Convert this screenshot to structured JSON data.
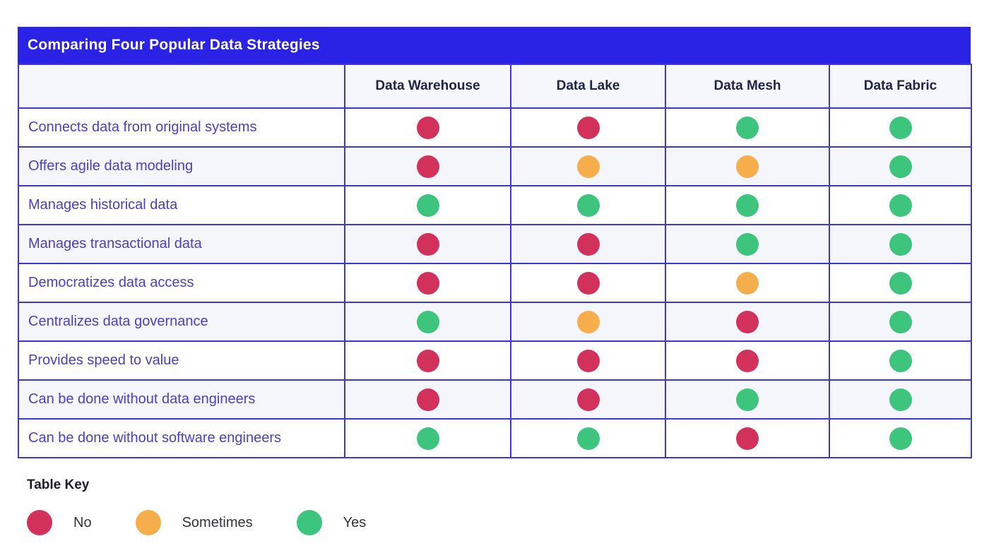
{
  "table": {
    "title": "Comparing Four Popular Data Strategies",
    "columns": [
      "Data Warehouse",
      "Data Lake",
      "Data Mesh",
      "Data Fabric"
    ],
    "rows": [
      {
        "label": "Connects data from original systems",
        "values": [
          "no",
          "no",
          "yes",
          "yes"
        ]
      },
      {
        "label": "Offers agile data modeling",
        "values": [
          "no",
          "sometimes",
          "sometimes",
          "yes"
        ]
      },
      {
        "label": "Manages historical data",
        "values": [
          "yes",
          "yes",
          "yes",
          "yes"
        ]
      },
      {
        "label": "Manages transactional data",
        "values": [
          "no",
          "no",
          "yes",
          "yes"
        ]
      },
      {
        "label": "Democratizes data access",
        "values": [
          "no",
          "no",
          "sometimes",
          "yes"
        ]
      },
      {
        "label": "Centralizes data governance",
        "values": [
          "yes",
          "sometimes",
          "no",
          "yes"
        ]
      },
      {
        "label": "Provides speed to value",
        "values": [
          "no",
          "no",
          "no",
          "yes"
        ]
      },
      {
        "label": "Can be done without data engineers",
        "values": [
          "no",
          "no",
          "yes",
          "yes"
        ]
      },
      {
        "label": "Can be done without software engineers",
        "values": [
          "yes",
          "yes",
          "no",
          "yes"
        ]
      }
    ]
  },
  "key": {
    "title": "Table Key",
    "items": [
      {
        "label": "No",
        "value": "no"
      },
      {
        "label": "Sometimes",
        "value": "sometimes"
      },
      {
        "label": "Yes",
        "value": "yes"
      }
    ]
  },
  "colors": {
    "no": "#d1315a",
    "sometimes": "#f6ae4c",
    "yes": "#3ec57d",
    "title_bar": "#2a22e4",
    "border": "#3d36d9",
    "header_row_bg": "#f5f7fd",
    "header_text": "#1f2347",
    "label_text": "#4a3fc7",
    "zebra": "#f5f6fb"
  },
  "chart_data": {
    "type": "table",
    "title": "Comparing Four Popular Data Strategies",
    "columns": [
      "Data Warehouse",
      "Data Lake",
      "Data Mesh",
      "Data Fabric"
    ],
    "row_labels": [
      "Connects data from original systems",
      "Offers agile data modeling",
      "Manages historical data",
      "Manages transactional data",
      "Democratizes data access",
      "Centralizes data governance",
      "Provides speed to value",
      "Can be done without data engineers",
      "Can be done without software engineers"
    ],
    "cell_values": [
      [
        "No",
        "No",
        "Yes",
        "Yes"
      ],
      [
        "No",
        "Sometimes",
        "Sometimes",
        "Yes"
      ],
      [
        "Yes",
        "Yes",
        "Yes",
        "Yes"
      ],
      [
        "No",
        "No",
        "Yes",
        "Yes"
      ],
      [
        "No",
        "No",
        "Sometimes",
        "Yes"
      ],
      [
        "Yes",
        "Sometimes",
        "No",
        "Yes"
      ],
      [
        "No",
        "No",
        "No",
        "Yes"
      ],
      [
        "No",
        "No",
        "Yes",
        "Yes"
      ],
      [
        "Yes",
        "Yes",
        "No",
        "Yes"
      ]
    ],
    "legend": [
      {
        "label": "No",
        "color": "#d1315a"
      },
      {
        "label": "Sometimes",
        "color": "#f6ae4c"
      },
      {
        "label": "Yes",
        "color": "#3ec57d"
      }
    ],
    "legend_position": "bottom"
  }
}
